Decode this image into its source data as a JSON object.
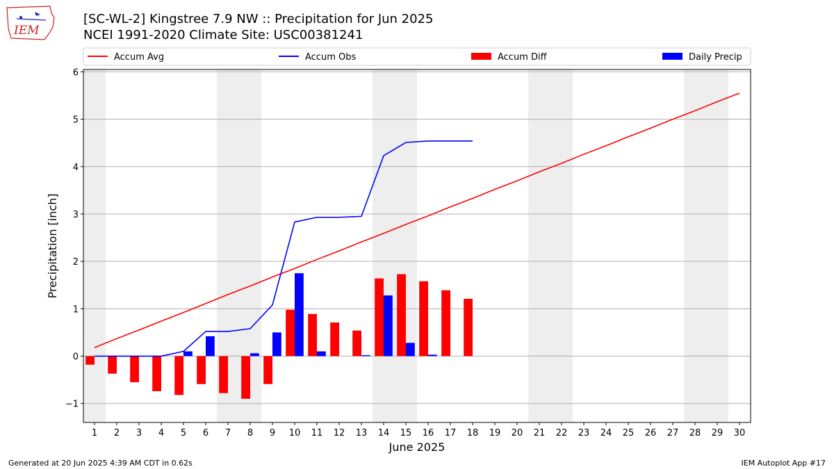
{
  "header": {
    "title_line1": "[SC-WL-2] Kingstree 7.9 NW :: Precipitation for Jun 2025",
    "title_line2": "NCEI 1991-2020 Climate Site: USC00381241"
  },
  "logo": {
    "text": "IEM",
    "color": "#cc2222"
  },
  "footer": {
    "left": "Generated at 20 Jun 2025 4:39 AM CDT in 0.62s",
    "right": "IEM Autoplot App #17"
  },
  "colors": {
    "avg": "#ff0000",
    "obs": "#0000ff",
    "diff": "#ff0000",
    "daily": "#0000ff",
    "weekend": "#eeeeee",
    "grid": "#b0b0b0"
  },
  "chart_data": {
    "type": "bar",
    "xlabel": "June 2025",
    "ylabel": "Precipitation [inch]",
    "ylim": [
      -1.4,
      6.05
    ],
    "yticks": [
      -1,
      0,
      1,
      2,
      3,
      4,
      5,
      6
    ],
    "ytick_labels": [
      "−1",
      "0",
      "1",
      "2",
      "3",
      "4",
      "5",
      "6"
    ],
    "xticks": [
      1,
      2,
      3,
      4,
      5,
      6,
      7,
      8,
      9,
      10,
      11,
      12,
      13,
      14,
      15,
      16,
      17,
      18,
      19,
      20,
      21,
      22,
      23,
      24,
      25,
      26,
      27,
      28,
      29,
      30
    ],
    "weekend_shading": [
      [
        0.5,
        1.5
      ],
      [
        6.5,
        8.5
      ],
      [
        13.5,
        15.5
      ],
      [
        20.5,
        22.5
      ],
      [
        27.5,
        29.5
      ]
    ],
    "grid": "horizontal",
    "legend": {
      "position": "top",
      "entries": [
        "Accum Avg",
        "Accum Obs",
        "Accum Diff",
        "Daily Precip"
      ]
    },
    "series": [
      {
        "name": "Accum Avg",
        "kind": "line",
        "x": [
          1,
          2,
          3,
          4,
          5,
          6,
          7,
          8,
          9,
          10,
          11,
          12,
          13,
          14,
          15,
          16,
          17,
          18,
          19,
          20,
          21,
          22,
          23,
          24,
          25,
          26,
          27,
          28,
          29,
          30
        ],
        "values": [
          0.18,
          0.37,
          0.55,
          0.74,
          0.92,
          1.11,
          1.3,
          1.48,
          1.67,
          1.85,
          2.04,
          2.22,
          2.41,
          2.59,
          2.78,
          2.96,
          3.15,
          3.33,
          3.52,
          3.7,
          3.89,
          4.07,
          4.26,
          4.44,
          4.63,
          4.81,
          5.0,
          5.18,
          5.37,
          5.55
        ]
      },
      {
        "name": "Accum Obs",
        "kind": "line",
        "x": [
          1,
          2,
          3,
          4,
          5,
          6,
          7,
          8,
          9,
          10,
          11,
          12,
          13,
          14,
          15,
          16,
          17,
          18
        ],
        "values": [
          0.0,
          0.0,
          0.0,
          0.0,
          0.1,
          0.52,
          0.52,
          0.58,
          1.08,
          2.83,
          2.93,
          2.93,
          2.95,
          4.23,
          4.51,
          4.54,
          4.54,
          4.54
        ]
      },
      {
        "name": "Accum Diff",
        "kind": "bar",
        "x": [
          1,
          2,
          3,
          4,
          5,
          6,
          7,
          8,
          9,
          10,
          11,
          12,
          13,
          14,
          15,
          16,
          17,
          18
        ],
        "values": [
          -0.18,
          -0.37,
          -0.55,
          -0.74,
          -0.82,
          -0.59,
          -0.78,
          -0.9,
          -0.59,
          0.98,
          0.89,
          0.71,
          0.54,
          1.64,
          1.73,
          1.58,
          1.39,
          1.21
        ]
      },
      {
        "name": "Daily Precip",
        "kind": "bar",
        "x": [
          1,
          2,
          3,
          4,
          5,
          6,
          7,
          8,
          9,
          10,
          11,
          12,
          13,
          14,
          15,
          16,
          17,
          18
        ],
        "values": [
          0.0,
          0.0,
          0.0,
          0.0,
          0.1,
          0.42,
          0.0,
          0.06,
          0.5,
          1.75,
          0.1,
          0.0,
          0.02,
          1.28,
          0.28,
          0.03,
          0.0,
          0.0
        ]
      }
    ]
  }
}
